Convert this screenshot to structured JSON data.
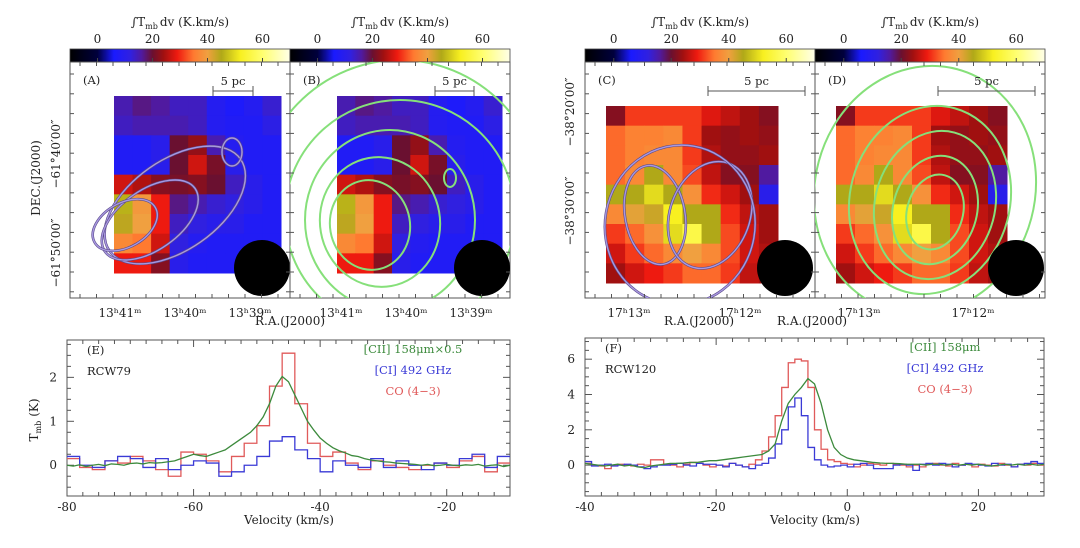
{
  "colorbar": {
    "label_main": "∫T",
    "label_sub": "mb",
    "label_rest": "dv (K.km/s)",
    "ticks": [
      0,
      20,
      40,
      60
    ],
    "range": [
      -10,
      70
    ],
    "colormap": [
      {
        "v": -10,
        "c": "#000000"
      },
      {
        "v": 0,
        "c": "#00003c"
      },
      {
        "v": 6,
        "c": "#1a1aff"
      },
      {
        "v": 12,
        "c": "#3020e0"
      },
      {
        "v": 16,
        "c": "#501aa0"
      },
      {
        "v": 20,
        "c": "#6a1030"
      },
      {
        "v": 24,
        "c": "#a01010"
      },
      {
        "v": 29,
        "c": "#ee1a10"
      },
      {
        "v": 35,
        "c": "#ff7a30"
      },
      {
        "v": 40,
        "c": "#f0a040"
      },
      {
        "v": 45,
        "c": "#b0a818"
      },
      {
        "v": 52,
        "c": "#f8f020"
      },
      {
        "v": 60,
        "c": "#ffff70"
      },
      {
        "v": 70,
        "c": "#ffffe8"
      }
    ]
  },
  "maps": {
    "rcw79": [
      [
        15,
        17,
        16,
        14,
        14,
        9,
        7,
        9,
        13
      ],
      [
        14,
        15,
        15,
        15,
        14,
        9,
        8,
        8,
        11
      ],
      [
        8,
        8,
        10,
        20,
        23,
        15,
        9,
        8,
        8
      ],
      [
        8,
        8,
        10,
        20,
        27,
        21,
        10,
        8,
        8
      ],
      [
        27,
        25,
        22,
        21,
        22,
        20,
        14,
        10,
        8
      ],
      [
        46,
        39,
        29,
        17,
        15,
        13,
        12,
        10,
        8
      ],
      [
        44,
        40,
        29,
        14,
        12,
        10,
        10,
        8,
        8
      ],
      [
        37,
        35,
        27,
        12,
        9,
        8,
        8,
        8,
        8
      ],
      [
        29,
        29,
        22,
        10,
        8,
        8,
        8,
        8,
        8
      ]
    ],
    "rcw120": [
      [
        22,
        31,
        31,
        31,
        31,
        28,
        26,
        24,
        22
      ],
      [
        34,
        36,
        36,
        37,
        31,
        24,
        23,
        24,
        23
      ],
      [
        34,
        36,
        37,
        37,
        31,
        25,
        23,
        23,
        24
      ],
      [
        34,
        37,
        45,
        37,
        32,
        26,
        22,
        22,
        16
      ],
      [
        45,
        45,
        50,
        45,
        38,
        30,
        27,
        24,
        10
      ],
      [
        37,
        41,
        43,
        52,
        45,
        45,
        30,
        26,
        24
      ],
      [
        31,
        34,
        38,
        50,
        56,
        45,
        32,
        27,
        24
      ],
      [
        27,
        31,
        34,
        37,
        40,
        37,
        32,
        27,
        25
      ],
      [
        24,
        27,
        29,
        31,
        34,
        34,
        31,
        26,
        24
      ]
    ]
  },
  "panels": [
    {
      "id": "A",
      "label": "(A)",
      "map": "rcw79",
      "scale_label": "5 pc",
      "contour_set": "lavender",
      "ra_ticks": [
        "13ʰ41ᵐ",
        "13ʰ40ᵐ",
        "13ʰ39ᵐ"
      ],
      "dec_ticks": [
        "−61°40′00″",
        "−61°50′00″"
      ],
      "dec_axis_label": "DEC.(J2000)",
      "ra_axis_label": "R.A.(J2000)"
    },
    {
      "id": "B",
      "label": "(B)",
      "map": "rcw79",
      "scale_label": "5 pc",
      "contour_set": "green",
      "ra_ticks": [
        "13ʰ41ᵐ",
        "13ʰ40ᵐ",
        "13ʰ39ᵐ"
      ]
    },
    {
      "id": "C",
      "label": "(C)",
      "map": "rcw120",
      "scale_label": "5 pc",
      "contour_set": "lavender",
      "ra_ticks": [
        "17ʰ13ᵐ",
        "17ʰ12ᵐ"
      ],
      "dec_ticks": [
        "−38°20′00″",
        "−38°30′00″"
      ],
      "ra_axis_label": "R.A.(J2000)"
    },
    {
      "id": "D",
      "label": "(D)",
      "map": "rcw120",
      "scale_label": "5 pc",
      "contour_set": "green",
      "ra_ticks": [
        "17ʰ13ᵐ",
        "17ʰ12ᵐ"
      ],
      "ra_axis_label": "R.A.(J2000)"
    }
  ],
  "chart_data": [
    {
      "type": "line",
      "panel_label": "(E)",
      "source": "RCW79",
      "xlabel": "Velocity (km/s)",
      "ylabel_main": "T",
      "ylabel_sub": "mb",
      "ylabel_rest": "(K)",
      "xlim": [
        -80,
        -10
      ],
      "ylim": [
        -0.7,
        2.85
      ],
      "xticks": [
        -80,
        -60,
        -40,
        -20
      ],
      "yticks": [
        0,
        1,
        2
      ],
      "legend_position": "top-right",
      "series": [
        {
          "name": "[CII] 158μm×0.5",
          "color": "#3c8a3c",
          "style": "line",
          "x_start": -80,
          "x_step": 1,
          "values": [
            0,
            -0.02,
            0.01,
            -0.03,
            0,
            0.02,
            -0.01,
            0.03,
            0.02,
            0,
            0.04,
            0.05,
            0.03,
            0.06,
            0.05,
            0.06,
            0.08,
            0.1,
            0.15,
            0.2,
            0.25,
            0.22,
            0.2,
            0.25,
            0.3,
            0.35,
            0.45,
            0.55,
            0.65,
            0.75,
            0.9,
            1.1,
            1.4,
            1.8,
            2.02,
            1.9,
            1.6,
            1.3,
            1.0,
            0.8,
            0.62,
            0.5,
            0.4,
            0.33,
            0.28,
            0.22,
            0.2,
            0.15,
            0.12,
            0.1,
            0.08,
            0.07,
            0.05,
            0.04,
            0.03,
            0.02,
            0,
            0.02,
            -0.01,
            0,
            0.02,
            0,
            -0.01,
            0.01,
            0,
            0.02,
            -0.02,
            0,
            0.01,
            -0.03,
            0
          ]
        },
        {
          "name": "[CI] 492 GHz",
          "color": "#3a3ad6",
          "style": "step",
          "x_start": -80,
          "x_step": 2,
          "values": [
            0.2,
            0,
            -0.05,
            0.1,
            0.2,
            0.15,
            -0.05,
            0.15,
            -0.1,
            0,
            0.1,
            0.05,
            -0.25,
            -0.15,
            0,
            0.2,
            0.55,
            0.65,
            0.35,
            0.15,
            -0.15,
            0.1,
            0,
            -0.05,
            0.15,
            -0.05,
            0.1,
            0,
            -0.1,
            0.05,
            0,
            0.15,
            0.25,
            -0.05,
            0.2
          ]
        },
        {
          "name": "CO (4−3)",
          "color": "#e05a5a",
          "style": "step",
          "x_start": -80,
          "x_step": 2,
          "values": [
            0.15,
            -0.05,
            -0.1,
            0.1,
            0.05,
            0.2,
            0.1,
            -0.1,
            -0.25,
            0.3,
            0.25,
            0.1,
            -0.15,
            0.2,
            0.5,
            0.9,
            1.8,
            2.55,
            1.4,
            0.5,
            0.2,
            0.3,
            0.05,
            -0.1,
            0.1,
            0,
            -0.05,
            -0.1,
            0,
            0.05,
            -0.05,
            0.1,
            0.2,
            -0.15,
            0.05
          ]
        }
      ]
    },
    {
      "type": "line",
      "panel_label": "(F)",
      "source": "RCW120",
      "xlabel": "Velocity (km/s)",
      "xlim": [
        -40,
        30
      ],
      "ylim": [
        -1.75,
        7.2
      ],
      "xticks": [
        -40,
        -20,
        0,
        20
      ],
      "yticks": [
        0,
        2,
        4,
        6
      ],
      "legend_position": "top-right",
      "series": [
        {
          "name": "[CII] 158μm",
          "color": "#3c8a3c",
          "style": "line",
          "x_start": -40,
          "x_step": 1,
          "values": [
            0.1,
            0.05,
            0,
            -0.05,
            0,
            0.05,
            -0.05,
            0,
            -0.1,
            -0.15,
            -0.05,
            0,
            0.05,
            0.1,
            0.1,
            0.12,
            0.15,
            0.15,
            0.2,
            0.25,
            0.25,
            0.3,
            0.35,
            0.4,
            0.45,
            0.5,
            0.55,
            0.6,
            0.8,
            1.2,
            2.5,
            3.5,
            4.0,
            4.4,
            4.9,
            4.6,
            3.5,
            2.0,
            1.0,
            0.6,
            0.4,
            0.3,
            0.25,
            0.2,
            0.15,
            0.12,
            0.1,
            0.1,
            0.08,
            0.05,
            0.05,
            0.05,
            0,
            0.05,
            0.05,
            0,
            0.05,
            0,
            0.05,
            0,
            0.05,
            0,
            -0.05,
            0,
            0.05,
            0,
            0.05,
            0,
            0.05,
            0,
            0.05
          ]
        },
        {
          "name": "[CI] 492 GHz",
          "color": "#3a3ad6",
          "style": "step",
          "x_start": -40,
          "x_step": 1,
          "values": [
            0.2,
            -0.05,
            0,
            0.05,
            -0.05,
            0,
            0.05,
            0,
            -0.1,
            -0.2,
            -0.1,
            0,
            0,
            0.05,
            0.1,
            0,
            -0.05,
            0.1,
            0.05,
            0.05,
            0,
            -0.1,
            0.1,
            0,
            -0.1,
            -0.2,
            0,
            0.1,
            0.4,
            1.2,
            2.0,
            3.3,
            3.8,
            2.8,
            1.0,
            0.3,
            0,
            -0.1,
            -0.05,
            0,
            -0.1,
            0.05,
            0.1,
            0,
            -0.2,
            -0.2,
            -0.2,
            0,
            0.05,
            0,
            -0.3,
            0.05,
            0.1,
            0,
            0.1,
            0.05,
            -0.1,
            0,
            0.1,
            0.05,
            0,
            -0.05,
            0.1,
            0,
            0.05,
            -0.1,
            0.05,
            0.1,
            0.2,
            0.1
          ]
        },
        {
          "name": "CO (4−3)",
          "color": "#e05a5a",
          "style": "step",
          "x_start": -40,
          "x_step": 1,
          "values": [
            0.1,
            0,
            -0.05,
            -0.2,
            0,
            0.05,
            0,
            -0.05,
            0.05,
            0,
            0.3,
            0.3,
            0.05,
            0,
            -0.1,
            0.05,
            0.15,
            0.1,
            0,
            -0.1,
            0,
            -0.05,
            0.1,
            0,
            -0.1,
            0.05,
            0.3,
            0.8,
            1.6,
            2.8,
            4.4,
            5.8,
            6.0,
            5.9,
            4.4,
            2.0,
            0.9,
            0.3,
            0.2,
            0.1,
            0.05,
            -0.1,
            0,
            0.1,
            0.05,
            0,
            0.1,
            0.05,
            0,
            -0.1,
            0,
            -0.1,
            0.05,
            0.1,
            0,
            -0.05,
            0.1,
            0,
            0.05,
            -0.1,
            0.05,
            0,
            -0.05,
            0.1,
            0,
            -0.1,
            0.05,
            0,
            0.1,
            0
          ]
        }
      ]
    }
  ]
}
